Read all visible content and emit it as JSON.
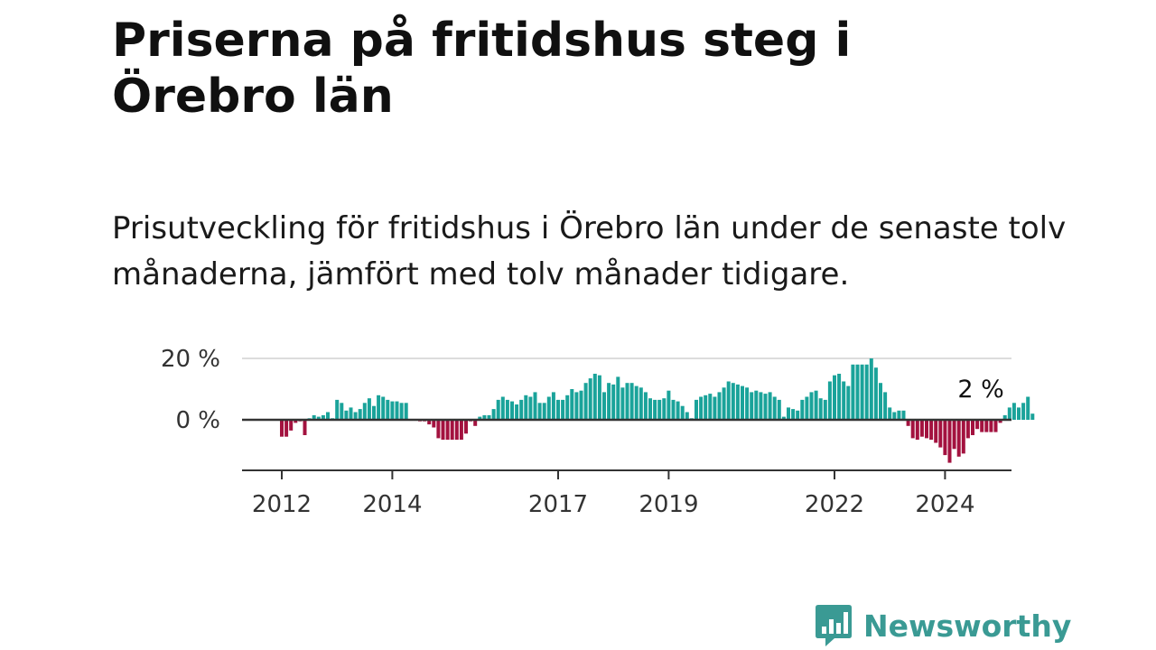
{
  "header": {
    "title": "Priserna på fritidshus steg i Örebro län",
    "subtitle": "Prisutveckling för fritidshus i Örebro län under de senaste tolv månaderna, jämfört med tolv månader tidigare."
  },
  "brand": {
    "name": "Newsworthy",
    "logo_icon": "newsworthy-logo-icon"
  },
  "chart_data": {
    "type": "bar",
    "title": "",
    "xlabel": "",
    "ylabel": "",
    "ylim": [
      -15,
      21
    ],
    "y_ticks": [
      {
        "value": 0,
        "label": "0 %"
      },
      {
        "value": 20,
        "label": "20 %"
      }
    ],
    "x_ticks": [
      {
        "label": "2012",
        "index": 0
      },
      {
        "label": "2014",
        "index": 24
      },
      {
        "label": "2017",
        "index": 60
      },
      {
        "label": "2019",
        "index": 84
      },
      {
        "label": "2022",
        "index": 120
      },
      {
        "label": "2024",
        "index": 144
      }
    ],
    "x_start": "2012-01",
    "frequency": "monthly",
    "grid": "horizontal",
    "colors": {
      "positive": "#1aa39a",
      "negative": "#a3123f",
      "axis": "#333333",
      "grid": "#dcdcdc"
    },
    "annotation": {
      "label": "2 %",
      "index": 151
    },
    "values": [
      -5.5,
      -5.5,
      -3.5,
      -1,
      -0.5,
      -5,
      0.5,
      1.5,
      1,
      1.5,
      2.5,
      0.5,
      6.5,
      5.5,
      3,
      4,
      2.5,
      3.5,
      5.5,
      7,
      4.5,
      8,
      7.5,
      6.5,
      6,
      6,
      5.5,
      5.5,
      -0.3,
      -0.3,
      -0.5,
      -0.5,
      -1.5,
      -2.5,
      -6,
      -6.5,
      -6.5,
      -6.5,
      -6.5,
      -6.5,
      -4.5,
      -0.5,
      -2,
      1,
      1.5,
      1.5,
      3.5,
      6.5,
      7.5,
      6.5,
      6,
      5,
      6.5,
      8,
      7.5,
      9,
      5.5,
      5.5,
      7.5,
      9,
      6.5,
      6.5,
      8,
      10,
      9,
      9.5,
      12,
      13.5,
      15,
      14.5,
      9,
      12,
      11.5,
      14,
      10.5,
      12,
      12,
      11,
      10.5,
      9,
      7,
      6.5,
      6.5,
      7,
      9.5,
      6.5,
      6,
      4.5,
      2.5,
      0.5,
      6.5,
      7.5,
      8,
      8.5,
      7.5,
      9,
      10.5,
      12.5,
      12,
      11.5,
      11,
      10.5,
      9,
      9.5,
      9,
      8.5,
      9,
      7.5,
      6.5,
      1,
      4,
      3.5,
      3,
      6.5,
      7.5,
      9,
      9.5,
      7,
      6.5,
      12.5,
      14.5,
      15,
      12.5,
      11,
      18,
      18,
      18,
      18,
      20,
      17,
      12,
      9,
      4,
      2.5,
      3,
      3,
      -2,
      -6,
      -6.5,
      -5.5,
      -6,
      -6.5,
      -7.5,
      -9,
      -11.5,
      -14,
      -9.5,
      -12,
      -11,
      -6,
      -5,
      -3,
      -4,
      -4,
      -4,
      -4,
      -1,
      1.5,
      4,
      5.5,
      4,
      5.5,
      7.5,
      2
    ]
  }
}
